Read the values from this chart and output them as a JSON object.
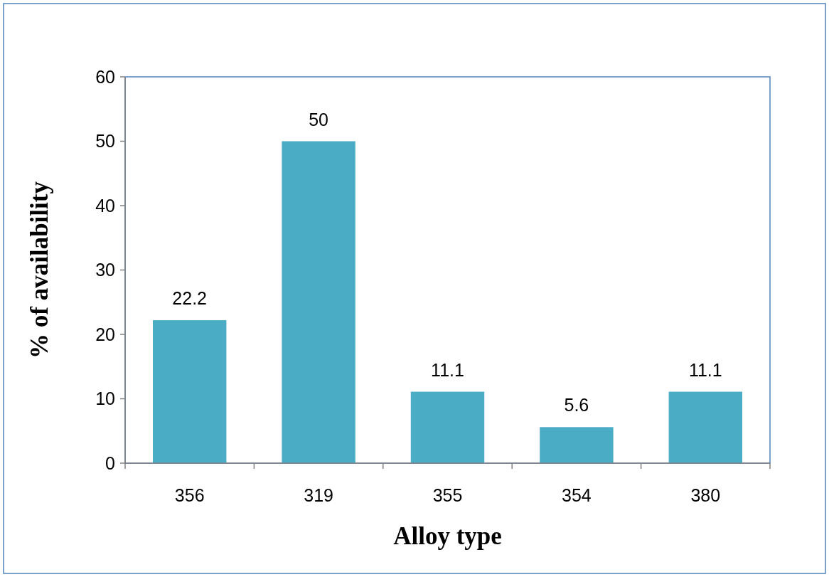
{
  "chart_data": {
    "type": "bar",
    "xlabel": "Alloy type",
    "ylabel": "% of availability",
    "categories": [
      "356",
      "319",
      "355",
      "354",
      "380"
    ],
    "values": [
      22.2,
      50,
      11.1,
      5.6,
      11.1
    ],
    "color": "#4bacc6",
    "ylim": [
      0,
      60
    ],
    "yticks": [
      0,
      10,
      20,
      30,
      40,
      50,
      60
    ],
    "data_labels": true,
    "grid": false
  }
}
